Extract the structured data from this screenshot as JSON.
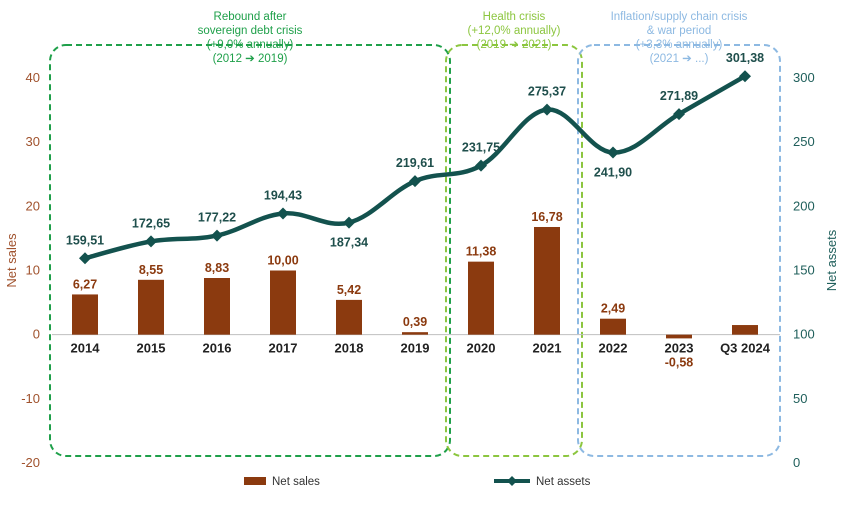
{
  "chart_data": {
    "type": "bar+line",
    "categories": [
      "2014",
      "2015",
      "2016",
      "2017",
      "2018",
      "2019",
      "2020",
      "2021",
      "2022",
      "2023",
      "Q3 2024"
    ],
    "series": [
      {
        "name": "Net sales",
        "type": "bar",
        "axis": "left",
        "values": [
          6.27,
          8.55,
          8.83,
          10.0,
          5.42,
          0.39,
          11.38,
          16.78,
          2.49,
          -0.58,
          1.5
        ],
        "labels": [
          "6,27",
          "8,55",
          "8,83",
          "10,00",
          "5,42",
          "0,39",
          "11,38",
          "16,78",
          "2,49",
          "-0,58",
          ""
        ],
        "color": "#8b3a0f"
      },
      {
        "name": "Net assets",
        "type": "line",
        "axis": "right",
        "values": [
          159.51,
          172.65,
          177.22,
          194.43,
          187.34,
          219.61,
          231.75,
          275.37,
          241.9,
          271.89,
          301.38
        ],
        "labels": [
          "159,51",
          "172,65",
          "177,22",
          "194,43",
          "187,34",
          "219,61",
          "231,75",
          "275,37",
          "241,90",
          "271,89",
          "301,38"
        ],
        "color": "#13524e"
      }
    ],
    "y_left": {
      "label": "Net sales",
      "range": [
        -20,
        40
      ],
      "ticks": [
        "-20",
        "-10",
        "0",
        "10",
        "20",
        "30",
        "40"
      ],
      "tick_values": [
        -20,
        -10,
        0,
        10,
        20,
        30,
        40
      ]
    },
    "y_right": {
      "label": "Net assets",
      "range": [
        0,
        300
      ],
      "ticks": [
        "0",
        "50",
        "100",
        "150",
        "200",
        "250",
        "300"
      ],
      "tick_values": [
        0,
        50,
        100,
        150,
        200,
        250,
        300
      ]
    },
    "annotations": [
      {
        "name": "rebound",
        "from": "2014",
        "to": "2019",
        "color": "#1fa04a",
        "lines": [
          "Rebound after",
          "sovereign debt crisis",
          "(+9,0% annually)",
          "(2012 ➔ 2019)"
        ]
      },
      {
        "name": "health",
        "from": "2020",
        "to": "2021",
        "color": "#8cc63f",
        "lines": [
          "Health crisis",
          "(+12,0% annually)",
          "(2019 ➔ 2021)"
        ]
      },
      {
        "name": "inflation",
        "from": "2022",
        "to": "Q3 2024",
        "color": "#8db9e2",
        "lines": [
          "Inflation/supply chain crisis",
          "& war period",
          "(+3,3% annually)",
          "(2021 ➔ ...)"
        ]
      }
    ],
    "legend": {
      "position": "bottom",
      "items": [
        "Net sales",
        "Net assets"
      ]
    },
    "grid": false
  }
}
